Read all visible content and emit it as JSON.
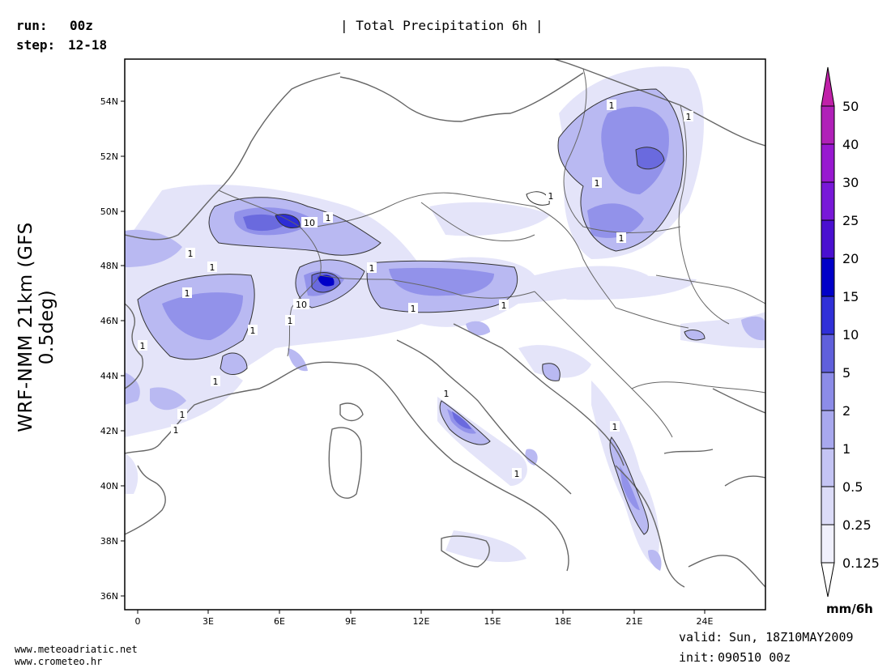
{
  "header": {
    "run_label": "run:",
    "run_value": "00z",
    "step_label": "step:",
    "step_value": "12-18",
    "title": "| Total Precipitation 6h |"
  },
  "model_label": "WRF-NMM 21km (GFS 0.5deg)",
  "map": {
    "lat_ticks": [
      "54N",
      "52N",
      "50N",
      "48N",
      "46N",
      "44N",
      "42N",
      "40N",
      "38N",
      "36N"
    ],
    "lon_ticks": [
      "0",
      "3E",
      "6E",
      "9E",
      "12E",
      "15E",
      "18E",
      "21E",
      "24E"
    ],
    "contour_labels": [
      "1",
      "1",
      "10",
      "1",
      "1",
      "1",
      "1",
      "1",
      "10",
      "1",
      "1",
      "1",
      "1",
      "1",
      "1",
      "1",
      "1",
      "1",
      "1",
      "1",
      "1",
      "1",
      "1",
      "1"
    ],
    "colors": {
      "coast": "#666666",
      "contour": "#333333"
    }
  },
  "colorbar": {
    "unit": "mm/6h",
    "levels": [
      "0.125",
      "0.25",
      "0.5",
      "1",
      "2",
      "5",
      "10",
      "15",
      "20",
      "25",
      "30",
      "40",
      "50"
    ],
    "colors": [
      "#ffffff",
      "#f0f0fc",
      "#dcdcf8",
      "#c4c4f4",
      "#a8a8ee",
      "#8c8ce8",
      "#6060dc",
      "#3030d8",
      "#0000c8",
      "#4a10d0",
      "#7818d8",
      "#9818d0",
      "#b020b8",
      "#c020a8"
    ]
  },
  "footer": {
    "site1": "www.meteoadriatic.net",
    "site2": "www.crometeo.hr",
    "valid_label": "valid:",
    "valid_value": "Sun, 18Z10MAY2009",
    "init_label": "init:",
    "init_value": "090510 00z"
  }
}
